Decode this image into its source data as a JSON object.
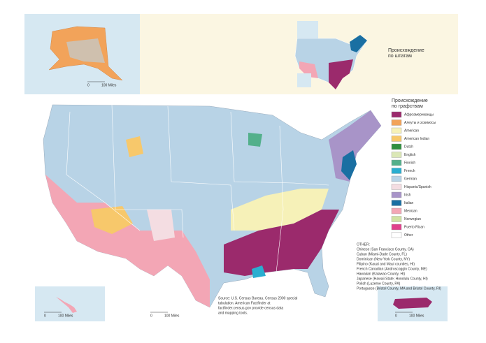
{
  "legend": {
    "title": [
      "Происхождение",
      "по графствам"
    ],
    "items": [
      {
        "label": "Афроамериканцы",
        "color": "#9b2a6c"
      },
      {
        "label": "Алеуты и эскимосы",
        "color": "#f2a35a"
      },
      {
        "label": "American",
        "color": "#f6f1b8"
      },
      {
        "label": "American Indian",
        "color": "#f7c86b"
      },
      {
        "label": "Dutch",
        "color": "#2f8f3f"
      },
      {
        "label": "English",
        "color": "#dbe7b6"
      },
      {
        "label": "Finnish",
        "color": "#53b08b"
      },
      {
        "label": "French",
        "color": "#2aaed0"
      },
      {
        "label": "German",
        "color": "#b8d3e6"
      },
      {
        "label": "Hispanic/Spanish",
        "color": "#f4dde2"
      },
      {
        "label": "Irish",
        "color": "#a894c8"
      },
      {
        "label": "Italian",
        "color": "#1a6fa2"
      },
      {
        "label": "Mexican",
        "color": "#f3a6b5"
      },
      {
        "label": "Norwegian",
        "color": "#d0e2a2"
      },
      {
        "label": "Puerto Rican",
        "color": "#e0408c"
      },
      {
        "label": "Other",
        "color": "#ffffff"
      }
    ]
  },
  "inset_title": [
    "Происхождение",
    "по штатам"
  ],
  "other": {
    "title": "OTHER:",
    "items": [
      "Chinese (San Francisco County, CA)",
      "Cuban (Miami-Dade County, FL)",
      "Dominican (New York County, NY)",
      "Filipino (Kauai and Maui counties, HI)",
      "French Canadian (Androscoggin County, ME)",
      "Hawaiian (Kalawao County, HI)",
      "Japanese (Hawaii State; Honolulu County, HI)",
      "Polish (Luzerne County, PA)",
      "Portuguese (Bristol County, MA and Bristol County, RI)"
    ]
  },
  "source": [
    "Source: U.S. Census Bureau, Census 2000 special",
    "tabulation. American Factfinder at",
    "factfinder.census.gov provide census data",
    "and mapping tools."
  ],
  "scales": [
    {
      "zero": "0",
      "label": "100 Miles"
    },
    {
      "zero": "0",
      "label": "100 Miles"
    },
    {
      "zero": "0",
      "label": "100 Miles"
    },
    {
      "zero": "0",
      "label": "100 Miles"
    }
  ]
}
